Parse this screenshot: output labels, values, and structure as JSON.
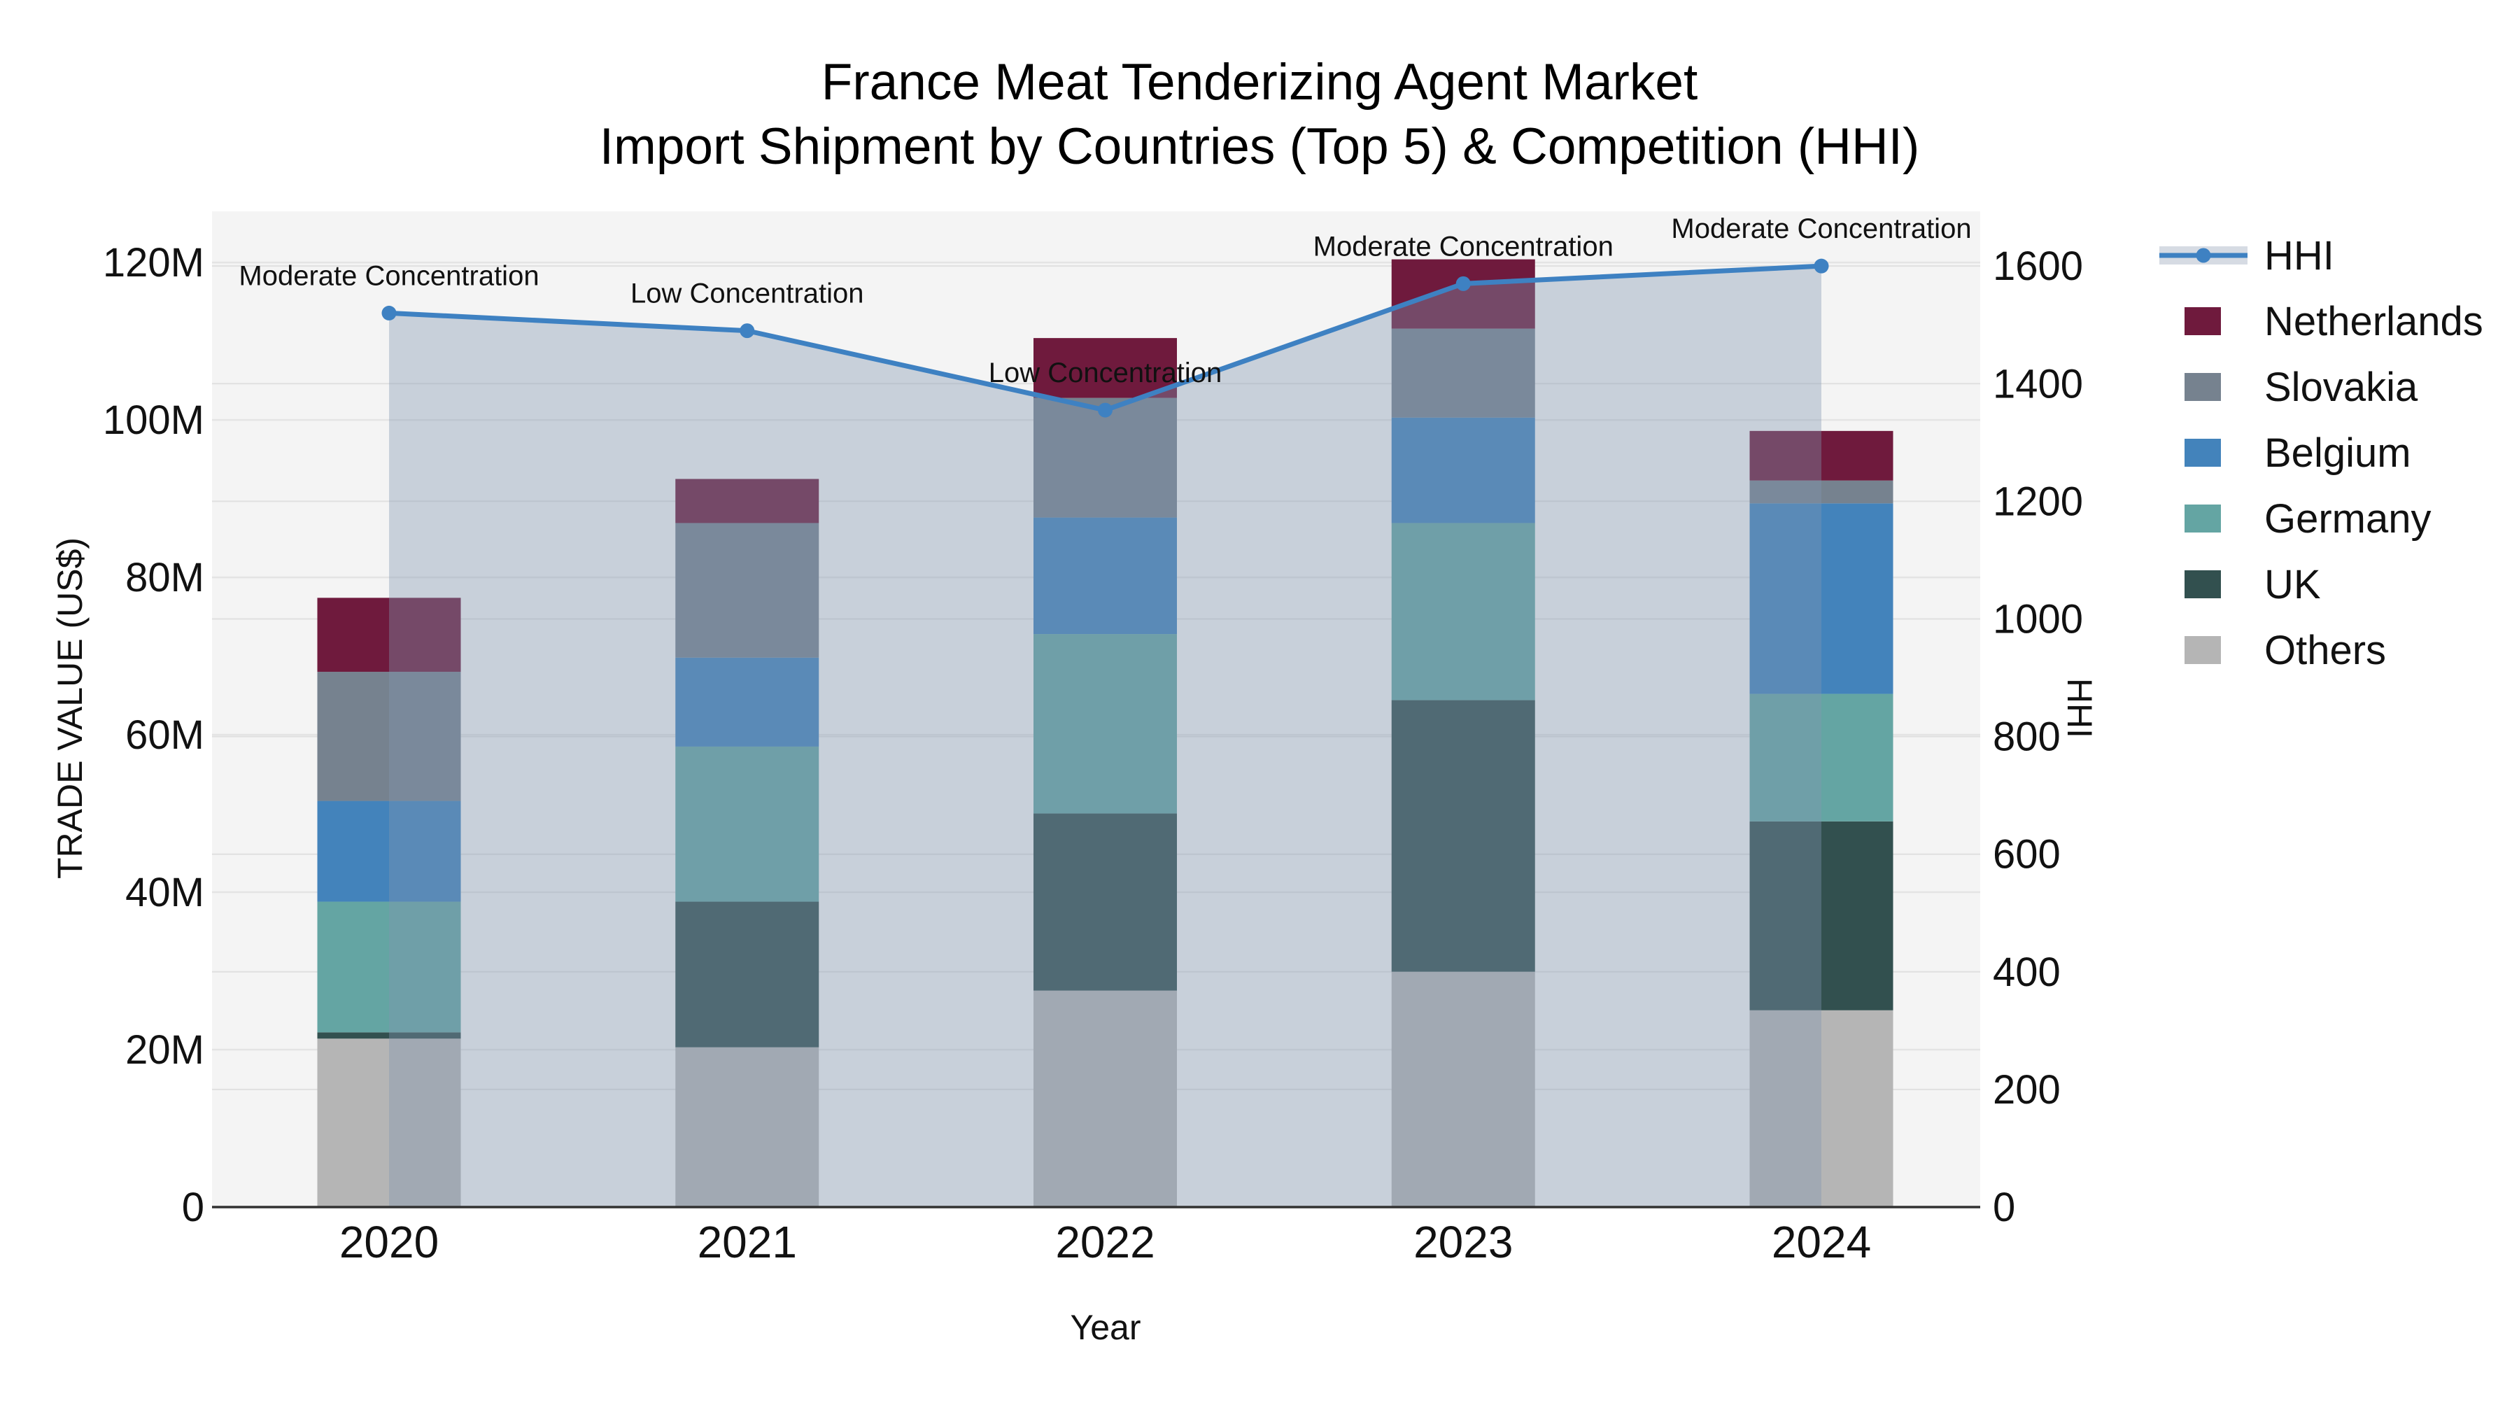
{
  "title": {
    "line1": "France Meat Tenderizing Agent Market",
    "line2": "Import Shipment by Countries (Top 5) & Competition (HHI)"
  },
  "axes": {
    "x_title": "Year",
    "y_left_title": "TRADE VALUE (US$)",
    "y_right_title": "HHI"
  },
  "legend": {
    "items": [
      {
        "label": "HHI",
        "type": "line",
        "color": "#3e81c2",
        "band_color": "#d6dbe3"
      },
      {
        "label": "Netherlands",
        "type": "swatch",
        "color": "#6f1a3d"
      },
      {
        "label": "Slovakia",
        "type": "swatch",
        "color": "#76828f"
      },
      {
        "label": "Belgium",
        "type": "swatch",
        "color": "#4383bb"
      },
      {
        "label": "Germany",
        "type": "swatch",
        "color": "#64a5a3"
      },
      {
        "label": "UK",
        "type": "swatch",
        "color": "#32504f"
      },
      {
        "label": "Others",
        "type": "swatch",
        "color": "#b5b5b5"
      }
    ]
  },
  "chart_data": {
    "type": "combo-stacked-bar-line",
    "title": "France Meat Tenderizing Agent Market — Import Shipment by Countries (Top 5) & Competition (HHI)",
    "categories": [
      "2020",
      "2021",
      "2022",
      "2023",
      "2024"
    ],
    "unit": "million US$",
    "plot_bg": "#f4f4f4",
    "grid": true,
    "legend_position": "right",
    "series": [
      {
        "name": "Others",
        "color": "#b5b5b5",
        "values": [
          21.4,
          20.3,
          27.5,
          29.9,
          25.0
        ]
      },
      {
        "name": "UK",
        "color": "#32504f",
        "values": [
          0.8,
          18.5,
          22.5,
          34.5,
          24.0
        ]
      },
      {
        "name": "Germany",
        "color": "#64a5a3",
        "values": [
          16.6,
          19.7,
          22.8,
          22.5,
          16.2
        ]
      },
      {
        "name": "Belgium",
        "color": "#4383bb",
        "values": [
          12.8,
          11.3,
          14.8,
          13.4,
          24.2
        ]
      },
      {
        "name": "Slovakia",
        "color": "#76828f",
        "values": [
          16.4,
          17.1,
          15.2,
          11.3,
          2.9
        ]
      },
      {
        "name": "Netherlands",
        "color": "#6f1a3d",
        "values": [
          9.4,
          5.6,
          7.6,
          8.8,
          6.3
        ]
      }
    ],
    "bar_totals": [
      77.4,
      92.5,
      110.4,
      120.4,
      98.6
    ],
    "line_series": {
      "name": "HHI",
      "axis": "right",
      "color": "#3e81c2",
      "values": [
        1520,
        1490,
        1355,
        1570,
        1600
      ],
      "area_fill": "rgba(130,150,175,0.38)"
    },
    "annotations": [
      {
        "category": "2020",
        "text": "Moderate Concentration"
      },
      {
        "category": "2021",
        "text": "Low Concentration"
      },
      {
        "category": "2022",
        "text": "Low Concentration"
      },
      {
        "category": "2023",
        "text": "Moderate Concentration"
      },
      {
        "category": "2024",
        "text": "Moderate Concentration"
      }
    ],
    "y_left": {
      "label": "TRADE VALUE (US$)",
      "range": [
        0,
        126.5
      ],
      "tick_values": [
        0,
        20,
        40,
        60,
        80,
        100,
        120
      ],
      "tick_labels": [
        "0",
        "20M",
        "40M",
        "60M",
        "80M",
        "100M",
        "120M"
      ]
    },
    "y_right": {
      "label": "HHI",
      "range": [
        0,
        1693
      ],
      "tick_values": [
        0,
        200,
        400,
        600,
        800,
        1000,
        1200,
        1400,
        1600
      ],
      "tick_labels": [
        "0",
        "200",
        "400",
        "600",
        "800",
        "1000",
        "1200",
        "1400",
        "1600"
      ]
    },
    "x_label": "Year"
  }
}
